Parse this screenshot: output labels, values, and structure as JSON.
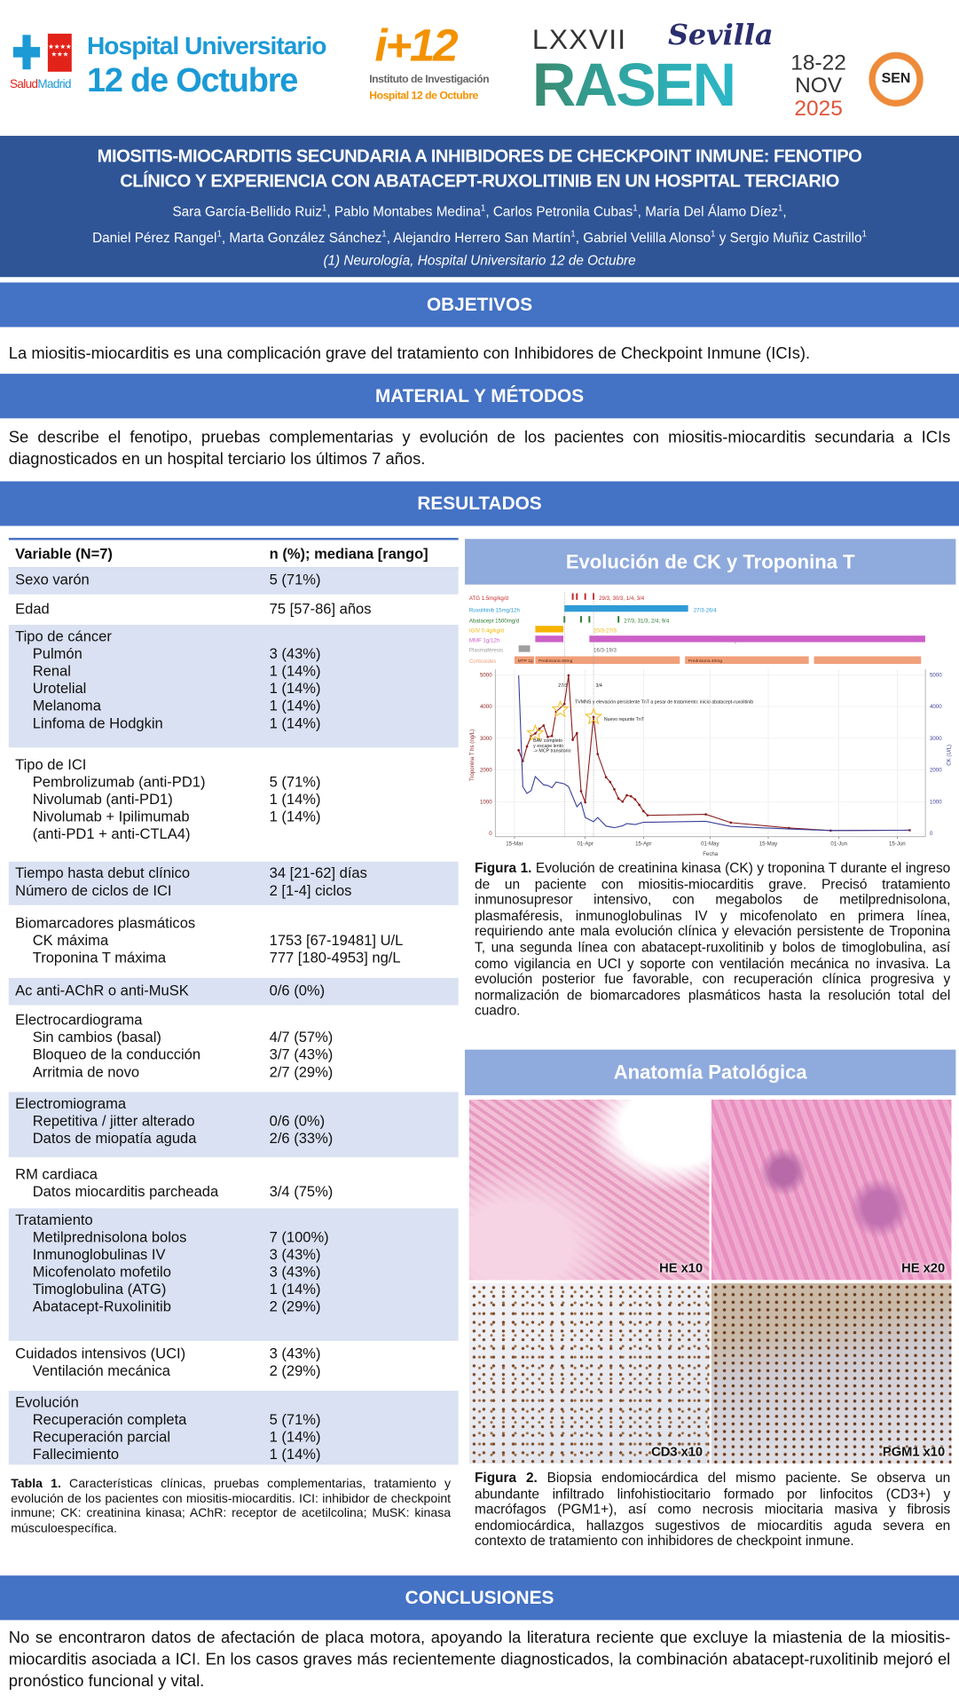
{
  "logos": {
    "hospital_line1": "Hospital Universitario",
    "hospital_line2": "12 de Octubre",
    "salud": "Salud",
    "madrid": "Madrid",
    "i12": "i+12",
    "instituto_line1": "Instituto de Investigación",
    "instituto_line2": "Hospital 12 de Octubre",
    "congress_number": "LXXVII",
    "congress_city": "Sevilla",
    "congress_name": "RASEN",
    "congress_days": "18-22",
    "congress_month": "NOV",
    "congress_year": "2025",
    "society": "SEN"
  },
  "header": {
    "title_line1": "MIOSITIS-MIOCARDITIS SECUNDARIA A INHIBIDORES DE CHECKPOINT INMUNE: FENOTIPO",
    "title_line2": "CLÍNICO Y EXPERIENCIA CON ABATACEPT-RUXOLITINIB EN UN HOSPITAL TERCIARIO",
    "authors_line1": [
      {
        "name": "Sara García-Bellido Ruiz",
        "aff": "1",
        "sep": ", "
      },
      {
        "name": "Pablo Montabes Medina",
        "aff": "1",
        "sep": ", "
      },
      {
        "name": "Carlos Petronila Cubas",
        "aff": "1",
        "sep": ", "
      },
      {
        "name": "María Del Álamo Díez",
        "aff": "1",
        "sep": ","
      }
    ],
    "authors_line2": [
      {
        "name": "Daniel Pérez Rangel",
        "aff": "1",
        "sep": ", "
      },
      {
        "name": "Marta González Sánchez",
        "aff": "1",
        "sep": ", "
      },
      {
        "name": "Alejandro Herrero San Martín",
        "aff": "1",
        "sep": ", "
      },
      {
        "name": "Gabriel Velilla Alonso",
        "aff": "1",
        "sep": " y "
      },
      {
        "name": "Sergio Muñiz Castrillo",
        "aff": "1",
        "sep": ""
      }
    ],
    "affiliation": "(1) Neurología, Hospital Universitario 12 de Octubre"
  },
  "objetivos": {
    "heading": "OBJETIVOS",
    "text": "La miositis-miocarditis es una complicación grave del tratamiento con Inhibidores de Checkpoint Inmune (ICIs)."
  },
  "metodos": {
    "heading": "MATERIAL Y MÉTODOS",
    "text": "Se describe el fenotipo, pruebas complementarias y evolución de los pacientes con miositis-miocarditis secundaria a ICIs diagnosticados en un hospital terciario los últimos 7 años."
  },
  "resultados": {
    "heading": "RESULTADOS",
    "table": {
      "col_variable": "Variable (N=7)",
      "col_value": "n (%); mediana [rango]",
      "groups": [
        {
          "rows": [
            {
              "label": "Sexo varón",
              "value": "5 (71%)"
            }
          ]
        },
        {
          "rows": [
            {
              "label": "Edad",
              "value": "75 [57-86] años"
            }
          ]
        },
        {
          "rows": [
            {
              "label": "Tipo de cáncer",
              "value": ""
            },
            {
              "label": "Pulmón",
              "value": "3 (43%)",
              "indent": true
            },
            {
              "label": "Renal",
              "value": "1 (14%)",
              "indent": true
            },
            {
              "label": "Urotelial",
              "value": "1 (14%)",
              "indent": true
            },
            {
              "label": "Melanoma",
              "value": "1 (14%)",
              "indent": true
            },
            {
              "label": "Linfoma de Hodgkin",
              "value": "1 (14%)",
              "indent": true
            }
          ]
        },
        {
          "rows": [
            {
              "label": "Tipo de ICI",
              "value": ""
            },
            {
              "label": "Pembrolizumab (anti-PD1)",
              "value": "5 (71%)",
              "indent": true
            },
            {
              "label": "Nivolumab (anti-PD1)",
              "value": "1 (14%)",
              "indent": true
            },
            {
              "label": "Nivolumab + Ipilimumab",
              "value": "1 (14%)",
              "indent": true
            },
            {
              "label": "(anti-PD1 + anti-CTLA4)",
              "value": "",
              "indent": true
            }
          ]
        },
        {
          "rows": [
            {
              "label": "Tiempo hasta debut clínico",
              "value": "34 [21-62] días"
            },
            {
              "label": "Número de ciclos de ICI",
              "value": "2 [1-4] ciclos"
            }
          ]
        },
        {
          "rows": [
            {
              "label": "Biomarcadores plasmáticos",
              "value": ""
            },
            {
              "label": "CK máxima",
              "value": "1753 [67-19481] U/L",
              "indent": true
            },
            {
              "label": "Troponina T máxima",
              "value": "777 [180-4953] ng/L",
              "indent": true
            }
          ]
        },
        {
          "rows": [
            {
              "label": "Ac anti-AChR o anti-MuSK",
              "value": "0/6 (0%)"
            }
          ]
        },
        {
          "rows": [
            {
              "label": "Electrocardiograma",
              "value": ""
            },
            {
              "label": "Sin cambios (basal)",
              "value": "4/7 (57%)",
              "indent": true
            },
            {
              "label": "Bloqueo de la conducción",
              "value": "3/7 (43%)",
              "indent": true
            },
            {
              "label": "Arritmia de novo",
              "value": "2/7 (29%)",
              "indent": true
            }
          ]
        },
        {
          "rows": [
            {
              "label": "Electromiograma",
              "value": ""
            },
            {
              "label": "Repetitiva / jitter alterado",
              "value": "0/6 (0%)",
              "indent": true
            },
            {
              "label": "Datos de miopatía aguda",
              "value": "2/6 (33%)",
              "indent": true
            }
          ]
        },
        {
          "rows": [
            {
              "label": "RM cardiaca",
              "value": ""
            },
            {
              "label": "Datos miocarditis parcheada",
              "value": "3/4 (75%)",
              "indent": true
            }
          ]
        },
        {
          "rows": [
            {
              "label": "Tratamiento",
              "value": ""
            },
            {
              "label": "Metilprednisolona bolos",
              "value": "7 (100%)",
              "indent": true
            },
            {
              "label": "Inmunoglobulinas IV",
              "value": "3 (43%)",
              "indent": true
            },
            {
              "label": "Micofenolato mofetilo",
              "value": "3 (43%)",
              "indent": true
            },
            {
              "label": "Timoglobulina (ATG)",
              "value": "1 (14%)",
              "indent": true
            },
            {
              "label": "Abatacept-Ruxolinitib",
              "value": "2 (29%)",
              "indent": true
            }
          ]
        },
        {
          "rows": [
            {
              "label": "Cuidados intensivos (UCI)",
              "value": "3 (43%)"
            },
            {
              "label": "Ventilación mecánica",
              "value": "2 (29%)",
              "indent": true
            }
          ]
        },
        {
          "rows": [
            {
              "label": "Evolución",
              "value": ""
            },
            {
              "label": "Recuperación completa",
              "value": "5 (71%)",
              "indent": true
            },
            {
              "label": "Recuperación parcial",
              "value": "1 (14%)",
              "indent": true
            },
            {
              "label": "Fallecimiento",
              "value": "1 (14%)",
              "indent": true
            }
          ]
        }
      ],
      "caption_label": "Tabla 1.",
      "caption": "Características clínicas, pruebas complementarias, tratamiento y evolución de los pacientes con miositis-miocarditis. ICI: inhibidor de checkpoint inmune; CK: creatinina kinasa; AChR: receptor de acetilcolina; MuSK: kinasa músculoespecífica."
    },
    "figure1": {
      "heading": "Evolución de CK y Troponina T",
      "caption_label": "Figura 1.",
      "caption": "Evolución de creatinina kinasa (CK) y troponina T durante el ingreso de un paciente con miositis-miocarditis grave. Precisó tratamiento inmunosupresor intensivo, con megabolos de metilprednisolona, plasmaféresis, inmunoglobulinas IV y micofenolato en primera línea, requiriendo ante mala evolución clínica y elevación persistente de Troponina T, una segunda línea con abatacept-ruxolitinib y bolos de timoglobulina, así como vigilancia en UCI y soporte con ventilación mecánica no invasiva. La evolución posterior fue favorable, con recuperación clínica progresiva y normalización de biomarcadores plasmáticos hasta la resolución total del cuadro."
    },
    "figure2": {
      "heading": "Anatomía Patológica",
      "panels": [
        "HE x10",
        "HE x20",
        "CD3 x10",
        "PGM1 x10"
      ],
      "caption_label": "Figura 2.",
      "caption": "Biopsia endomiocárdica del mismo paciente. Se observa un abundante infiltrado linfohistiocitario formado por linfocitos (CD3+) y macrófagos (PGM1+), así como necrosis miocitaria masiva y fibrosis endomiocárdica, hallazgos sugestivos de miocarditis aguda severa en contexto de tratamiento con inhibidores de checkpoint inmune."
    }
  },
  "conclusiones": {
    "heading": "CONCLUSIONES",
    "text": "No se encontraron datos de afectación de placa motora, apoyando la literatura reciente que excluye la miastenia de la miositis-miocarditis asociada a ICI. En los casos graves más recientemente diagnosticados, la combinación abatacept-ruxolitinib mejoró el pronóstico funcional y vital."
  },
  "chart_data": {
    "type": "line",
    "xlabel": "Fecha",
    "ylabel_left": "Troponina T hs (ng/L)",
    "ylabel_right": "CK (U/L)",
    "x_ticks": [
      "15-Mar",
      "01-Apr",
      "15-Apr",
      "01-May",
      "15-May",
      "01-Jun",
      "15-Jun"
    ],
    "y_ticks": [
      0,
      1000,
      2000,
      3000,
      4000,
      5000
    ],
    "ylim": [
      0,
      5000
    ],
    "grid": true,
    "colors": {
      "troponin": "#8B1E1E",
      "ck": "#3A3F9A",
      "star": "#F2C12E"
    },
    "series": [
      {
        "axis": "left",
        "color_key": "troponin",
        "markers": true,
        "points": [
          [
            "16/3",
            2620
          ],
          [
            "17/3",
            2280
          ],
          [
            "18/3",
            2740
          ],
          [
            "19/3",
            3070
          ],
          [
            "20/3",
            3150
          ],
          [
            "21/3",
            3300
          ],
          [
            "22/3",
            3400
          ],
          [
            "23/3",
            3040
          ],
          [
            "24/3",
            3070
          ],
          [
            "25/3",
            3830
          ],
          [
            "27/3",
            4080
          ],
          [
            "28/3",
            4980
          ],
          [
            "29/3",
            2950
          ],
          [
            "30/3",
            3160
          ],
          [
            "31/3",
            1330
          ],
          [
            "1/4",
            980
          ],
          [
            "3/4",
            3670
          ],
          [
            "4/4",
            2500
          ],
          [
            "6/4",
            1770
          ],
          [
            "7/4",
            1620
          ],
          [
            "8/4",
            1390
          ],
          [
            "9/4",
            1100
          ],
          [
            "10/4",
            1000
          ],
          [
            "11/4",
            1200
          ],
          [
            "12/4",
            1170
          ],
          [
            "13/4",
            1070
          ],
          [
            "14/4",
            900
          ],
          [
            "15/4",
            700
          ],
          [
            "16/4",
            570
          ],
          [
            "30/4",
            600
          ],
          [
            "6/5",
            340
          ],
          [
            "20/5",
            170
          ],
          [
            "30/5",
            90
          ],
          [
            "18/6",
            100
          ]
        ]
      },
      {
        "axis": "right",
        "color_key": "ck",
        "markers": false,
        "points": [
          [
            "16/3",
            4980
          ],
          [
            "17/3",
            1470
          ],
          [
            "18/3",
            1260
          ],
          [
            "19/3",
            1350
          ],
          [
            "20/3",
            1790
          ],
          [
            "22/3",
            1530
          ],
          [
            "23/3",
            1510
          ],
          [
            "24/3",
            1440
          ],
          [
            "25/3",
            1620
          ],
          [
            "27/3",
            1560
          ],
          [
            "28/3",
            1470
          ],
          [
            "30/3",
            840
          ],
          [
            "31/3",
            980
          ],
          [
            "1/4",
            500
          ],
          [
            "3/4",
            370
          ],
          [
            "4/4",
            500
          ],
          [
            "6/4",
            230
          ],
          [
            "8/4",
            180
          ],
          [
            "10/4",
            240
          ],
          [
            "11/4",
            310
          ],
          [
            "13/4",
            280
          ],
          [
            "15/4",
            350
          ],
          [
            "30/4",
            380
          ],
          [
            "6/5",
            220
          ],
          [
            "20/5",
            140
          ],
          [
            "30/5",
            90
          ],
          [
            "18/6",
            100
          ]
        ]
      }
    ],
    "markers_dates": [
      "27/3",
      "3/4"
    ],
    "stars": [
      [
        "20/3",
        3150
      ],
      [
        "26/3",
        3900
      ],
      [
        "3/4",
        3670
      ]
    ],
    "annotations": [
      {
        "date": "25/3",
        "value": 4620,
        "text": "27/3"
      },
      {
        "date": "3/4",
        "value": 4620,
        "text": "3/4"
      },
      {
        "date": "29/3",
        "value": 4100,
        "text": "TVMNS y elevación persistente TnT a pesar de tratamiento: inicio abatacept-ruxolitinib"
      },
      {
        "date": "5/4",
        "value": 3550,
        "text": "Nuevo repunte TnT"
      },
      {
        "date": "19/3",
        "value": 2880,
        "text": "BAV completo"
      },
      {
        "date": "19/3",
        "value": 2720,
        "text": "y escape lento"
      },
      {
        "date": "19/3",
        "value": 2560,
        "text": "-> MCP transitorio"
      }
    ],
    "timeline": [
      {
        "label": "ATG 1.5mg/kg/d",
        "color": "#C62828",
        "ticks": [
          "29/3",
          "30/3",
          "1/4",
          "3/4"
        ],
        "note": "29/3, 30/3, 1/4, 3/4"
      },
      {
        "label": "Ruxolitinib 15mg/12h",
        "color": "#2E9BD6",
        "bars": [
          [
            "27/3",
            "26/4"
          ]
        ],
        "note": "27/3-26/4"
      },
      {
        "label": "Abatacept 1500mg/d",
        "color": "#2E7D32",
        "ticks": [
          "27/3",
          "31/3",
          "2/4",
          "9/4"
        ],
        "note": "27/3, 31/3, 2/4, 9/4"
      },
      {
        "label": "IGIV 0.4g/kg/d",
        "color": "#F5B400",
        "bars": [
          [
            "20/3",
            "27/3"
          ]
        ],
        "note": "20/3-27/3"
      },
      {
        "label": "MMF 1g/12h",
        "color": "#CC5FC7",
        "bars": [
          [
            "20/3",
            "27/3"
          ],
          [
            "2/4",
            "22/6"
          ]
        ],
        "note": "20/3-27/3 y desde 2/4"
      },
      {
        "label": "Plasmaféresis",
        "color": "#9E9E9E",
        "bars": [
          [
            "16/3",
            "19/3"
          ]
        ],
        "note": "16/3-19/3"
      },
      {
        "label": "Corticoides",
        "color": "#F0A07A",
        "bars": [
          [
            "15/3",
            "20/3",
            "MTP 1g"
          ],
          [
            "20/3",
            "24/4",
            "Prednisona 80mg"
          ],
          [
            "25/4",
            "25/5",
            "Prednisona 40mg"
          ],
          [
            "26/5",
            "21/6",
            ""
          ]
        ]
      }
    ]
  }
}
